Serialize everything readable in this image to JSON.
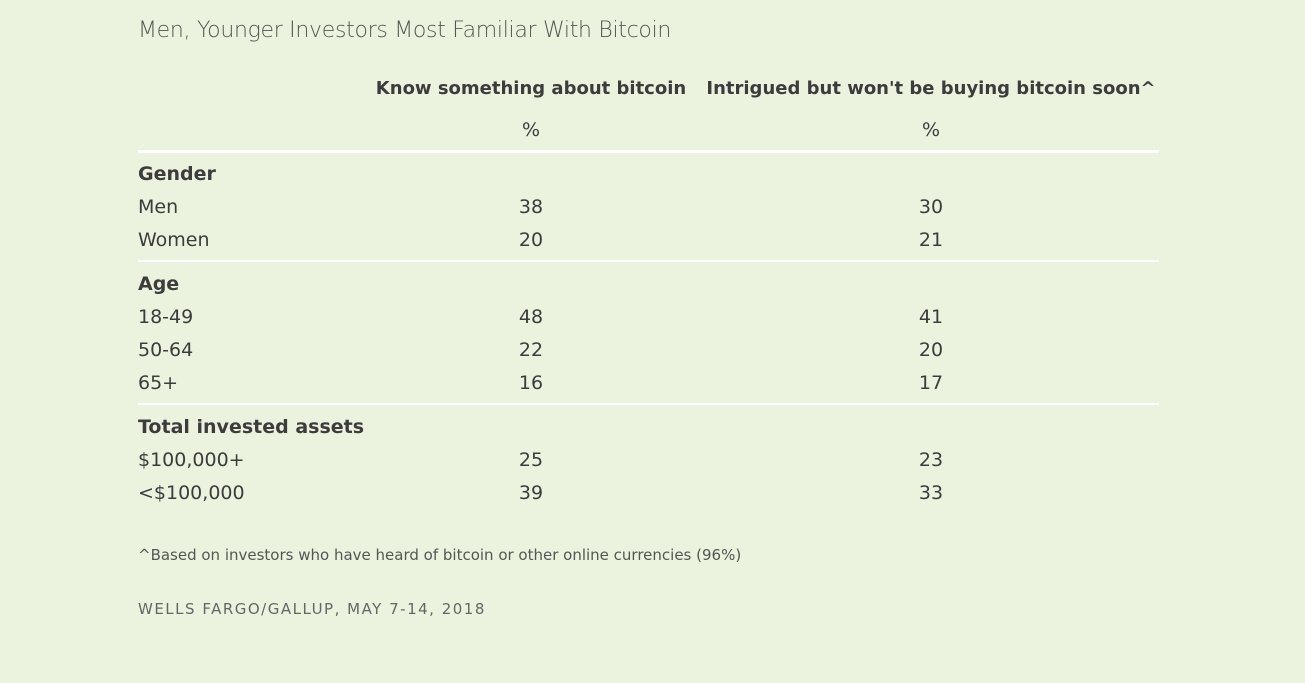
{
  "title": "Men, Younger Investors Most Familiar With Bitcoin",
  "table": {
    "columns": [
      "Know something about bitcoin",
      "Intrigued but won't be buying bitcoin soon^"
    ],
    "units": [
      "%",
      "%"
    ],
    "groups": [
      {
        "label": "Gender",
        "rows": [
          {
            "label": "Men",
            "values": [
              38,
              30
            ]
          },
          {
            "label": "Women",
            "values": [
              20,
              21
            ]
          }
        ]
      },
      {
        "label": "Age",
        "rows": [
          {
            "label": "18-49",
            "values": [
              48,
              41
            ]
          },
          {
            "label": "50-64",
            "values": [
              22,
              20
            ]
          },
          {
            "label": "65+",
            "values": [
              16,
              17
            ]
          }
        ]
      },
      {
        "label": "Total invested assets",
        "rows": [
          {
            "label": "$100,000+",
            "values": [
              25,
              23
            ]
          },
          {
            "label": "<$100,000",
            "values": [
              39,
              33
            ]
          }
        ]
      }
    ]
  },
  "footnote": "^Based on investors who have heard of bitcoin or other online currencies (96%)",
  "source": "WELLS FARGO/GALLUP, MAY 7-14, 2018"
}
